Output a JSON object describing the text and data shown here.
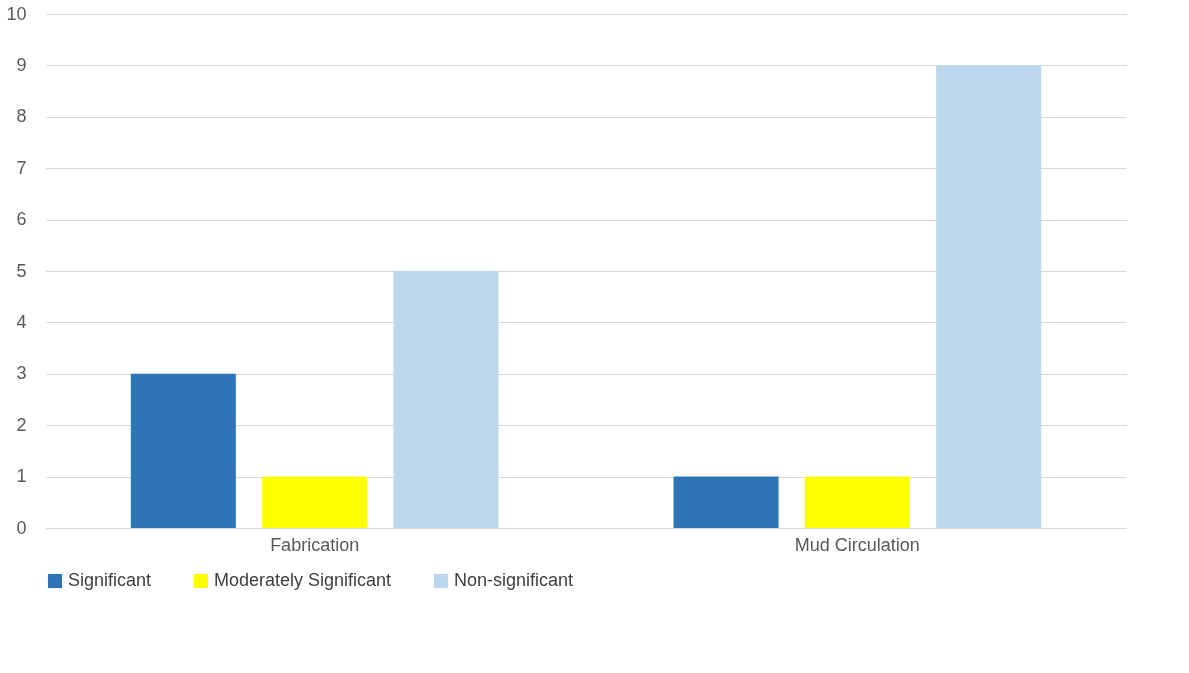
{
  "chart_data": {
    "type": "bar",
    "categories": [
      "Fabrication",
      "Mud Circulation"
    ],
    "series": [
      {
        "name": "Significant",
        "color": "#2e75b6",
        "values": [
          3,
          1
        ]
      },
      {
        "name": "Moderately Significant",
        "color": "#ffff00",
        "values": [
          1,
          1
        ]
      },
      {
        "name": "Non-significant",
        "color": "#bdd7ee",
        "values": [
          5,
          9
        ]
      }
    ],
    "ylim": [
      0,
      10
    ],
    "yticks": [
      0,
      1,
      2,
      3,
      4,
      5,
      6,
      7,
      8,
      9,
      10
    ],
    "grid": "y",
    "legend": "bottom"
  }
}
